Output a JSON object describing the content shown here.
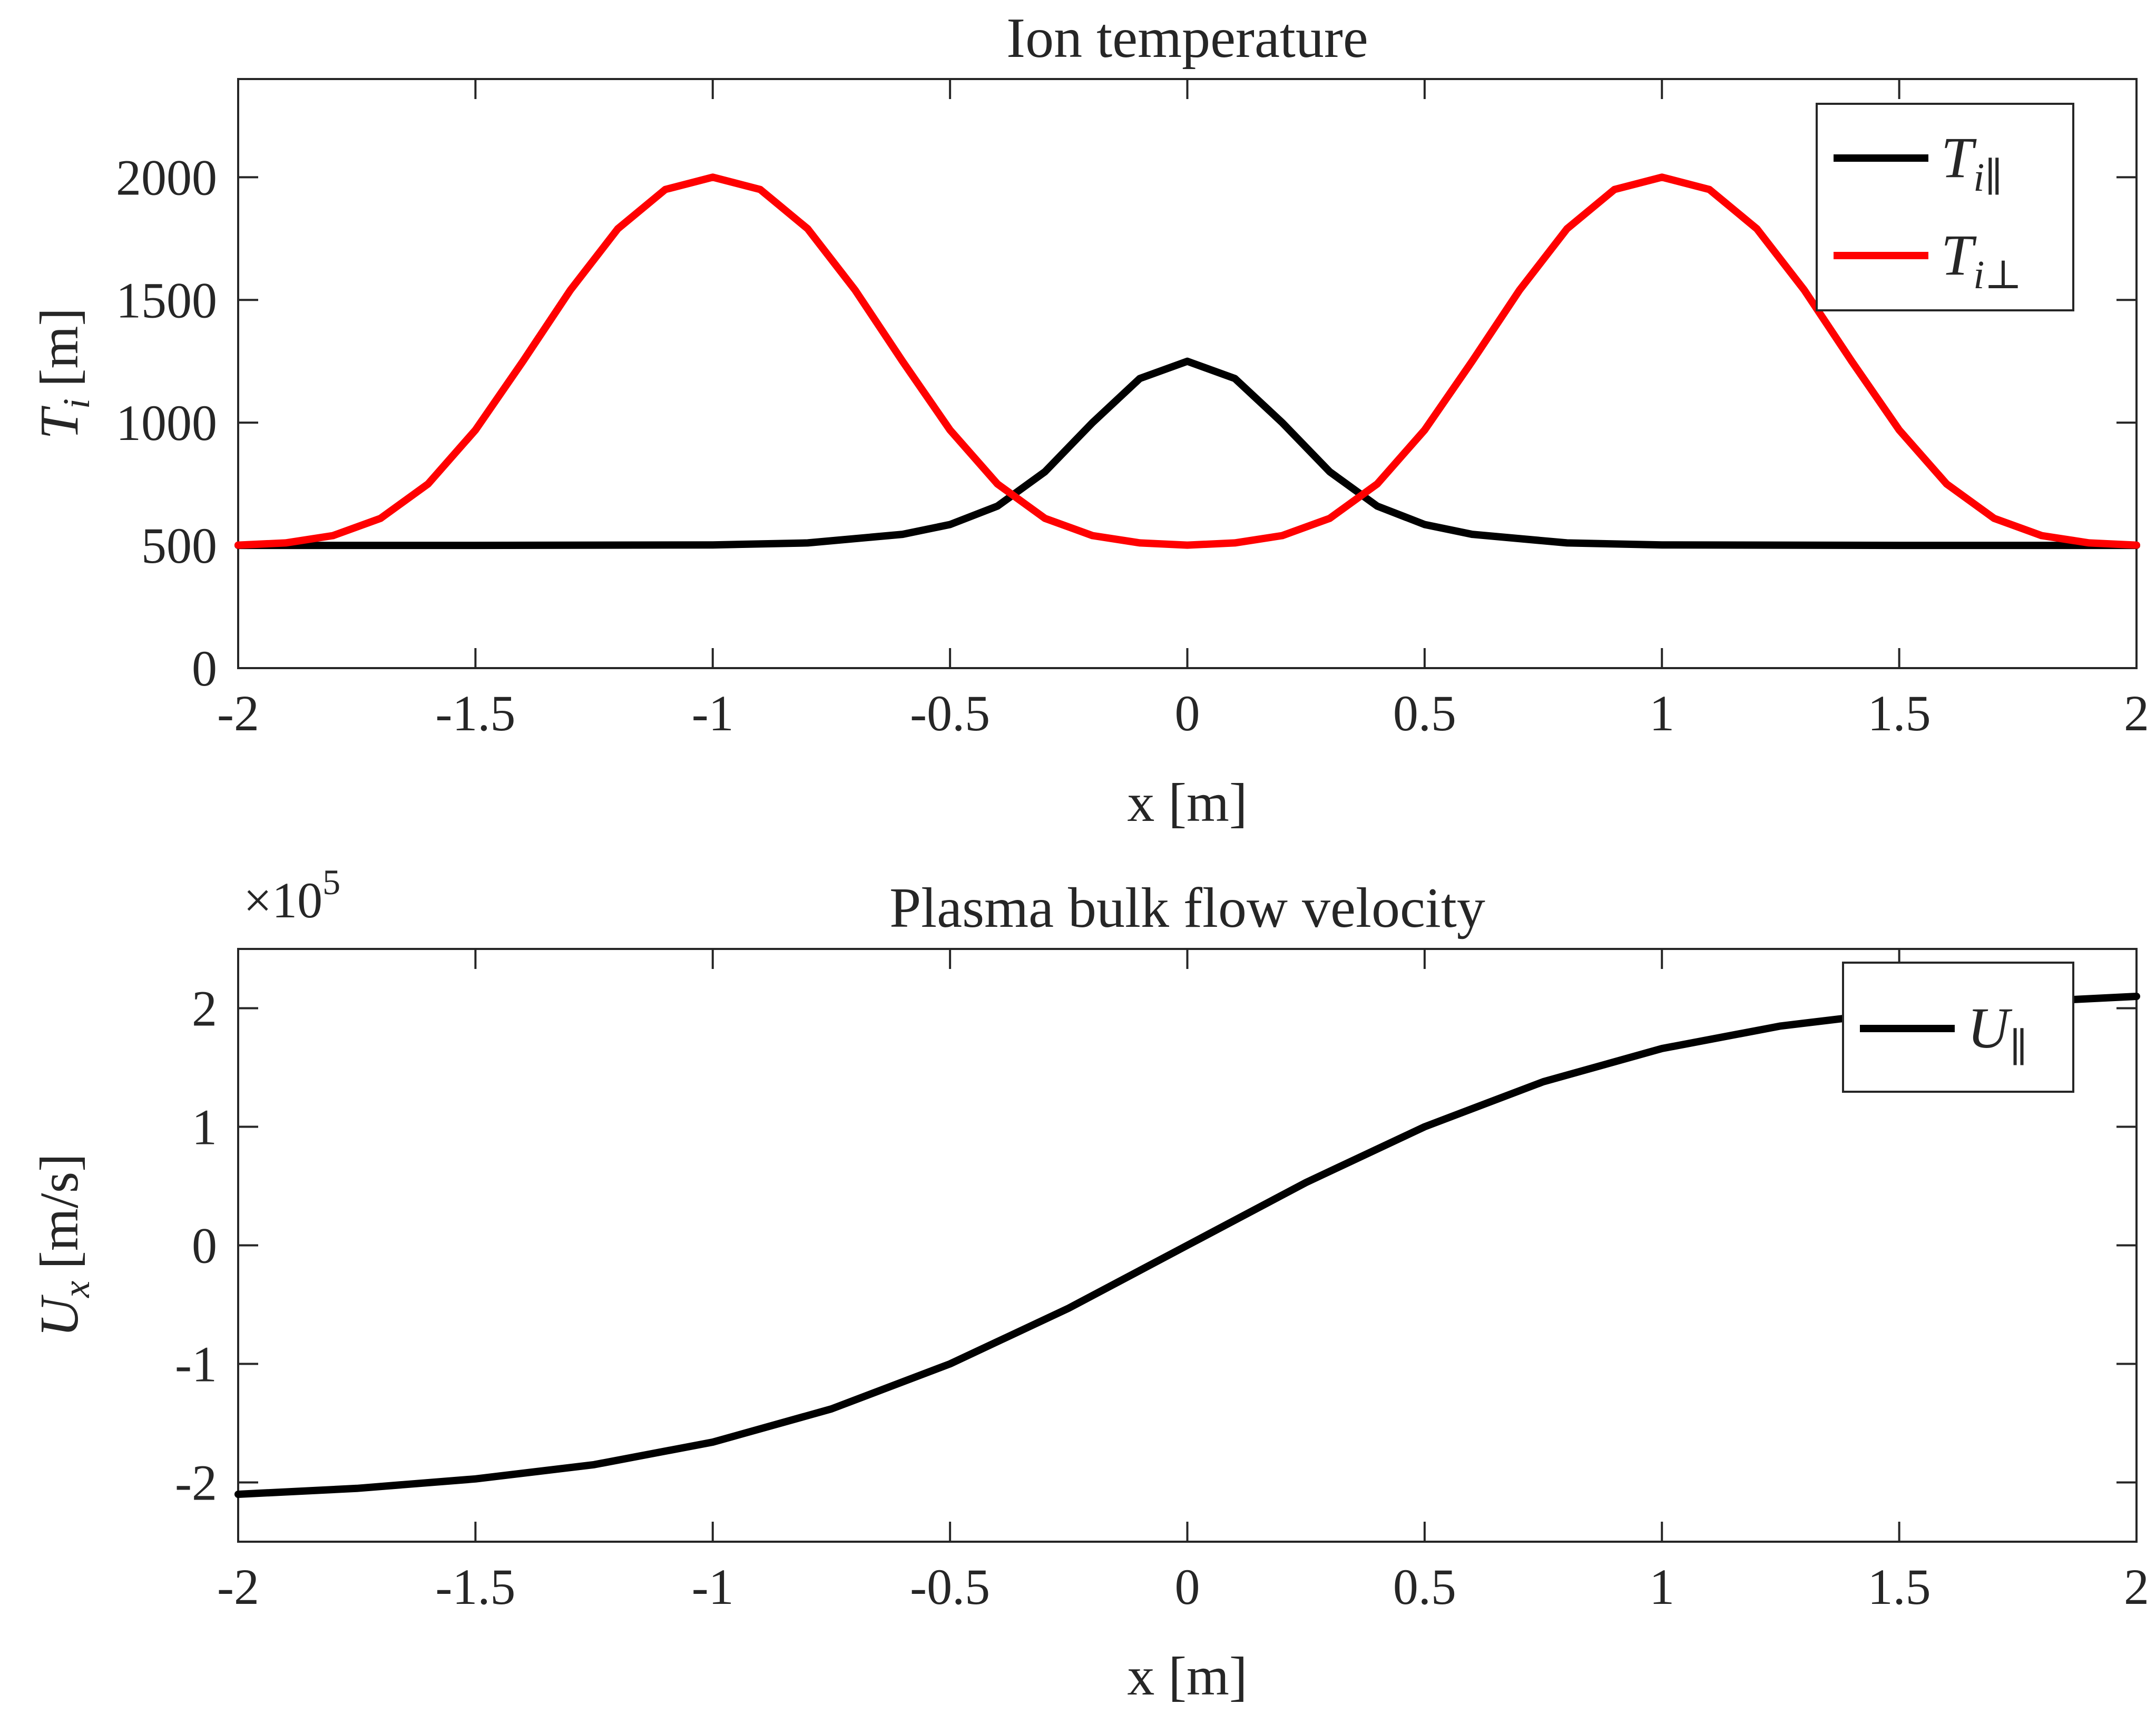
{
  "chart_data": [
    {
      "type": "line",
      "title": "Ion temperature",
      "xlabel": "x [m]",
      "ylabel": {
        "symbol": "T",
        "sub": "i",
        "unit": "[m]"
      },
      "xlim": [
        -2,
        2
      ],
      "ylim": [
        0,
        2400
      ],
      "xticks": [
        "-2",
        "-1.5",
        "-1",
        "-0.5",
        "0",
        "0.5",
        "1",
        "1.5",
        "2"
      ],
      "yticks": [
        "0",
        "500",
        "1000",
        "1500",
        "2000"
      ],
      "grid": false,
      "legend_position": "top-right",
      "series": [
        {
          "name": "T_i∥",
          "legend_symbol": "T",
          "legend_sub": "i∥",
          "color": "#000000",
          "x": [
            -2.0,
            -1.5,
            -1.0,
            -0.8,
            -0.6,
            -0.5,
            -0.4,
            -0.3,
            -0.2,
            -0.1,
            0.0,
            0.1,
            0.2,
            0.3,
            0.4,
            0.5,
            0.6,
            0.8,
            1.0,
            1.5,
            2.0
          ],
          "y": [
            500,
            500,
            502,
            510,
            545,
            585,
            660,
            800,
            1000,
            1180,
            1250,
            1180,
            1000,
            800,
            660,
            585,
            545,
            510,
            502,
            500,
            500
          ]
        },
        {
          "name": "T_i⊥",
          "legend_symbol": "T",
          "legend_sub": "i⊥",
          "color": "#ff0000",
          "x": [
            -2.0,
            -1.9,
            -1.8,
            -1.7,
            -1.6,
            -1.5,
            -1.4,
            -1.3,
            -1.2,
            -1.1,
            -1.0,
            -0.9,
            -0.8,
            -0.7,
            -0.6,
            -0.5,
            -0.4,
            -0.3,
            -0.2,
            -0.1,
            0.0,
            0.1,
            0.2,
            0.3,
            0.4,
            0.5,
            0.6,
            0.7,
            0.8,
            0.9,
            1.0,
            1.1,
            1.2,
            1.3,
            1.4,
            1.5,
            1.6,
            1.7,
            1.8,
            1.9,
            2.0
          ],
          "y": [
            501,
            510,
            540,
            610,
            750,
            970,
            1250,
            1540,
            1790,
            1950,
            2000,
            1950,
            1790,
            1540,
            1250,
            970,
            750,
            610,
            540,
            510,
            501,
            510,
            540,
            610,
            750,
            970,
            1250,
            1540,
            1790,
            1950,
            2000,
            1950,
            1790,
            1540,
            1250,
            970,
            750,
            610,
            540,
            510,
            501
          ]
        }
      ]
    },
    {
      "type": "line",
      "title": "Plasma bulk flow velocity",
      "xlabel": "x [m]",
      "ylabel": {
        "symbol": "U",
        "sub": "x",
        "unit": "[m/s]"
      },
      "exponent_label": {
        "base": "×10",
        "power": "5"
      },
      "xlim": [
        -2,
        2
      ],
      "ylim": [
        -2.5,
        2.5
      ],
      "xticks": [
        "-2",
        "-1.5",
        "-1",
        "-0.5",
        "0",
        "0.5",
        "1",
        "1.5",
        "2"
      ],
      "yticks": [
        "-2",
        "-1",
        "0",
        "1",
        "2"
      ],
      "grid": false,
      "legend_position": "top-right",
      "series": [
        {
          "name": "U_∥",
          "legend_symbol": "U",
          "legend_sub": "∥",
          "color": "#000000",
          "x": [
            -2.0,
            -1.75,
            -1.5,
            -1.25,
            -1.0,
            -0.75,
            -0.5,
            -0.25,
            0.0,
            0.25,
            0.5,
            0.75,
            1.0,
            1.25,
            1.5,
            1.75,
            2.0
          ],
          "y": [
            -2.1,
            -2.05,
            -1.97,
            -1.85,
            -1.66,
            -1.38,
            -1.0,
            -0.53,
            0.0,
            0.53,
            1.0,
            1.38,
            1.66,
            1.85,
            1.97,
            2.05,
            2.1
          ]
        }
      ]
    }
  ]
}
